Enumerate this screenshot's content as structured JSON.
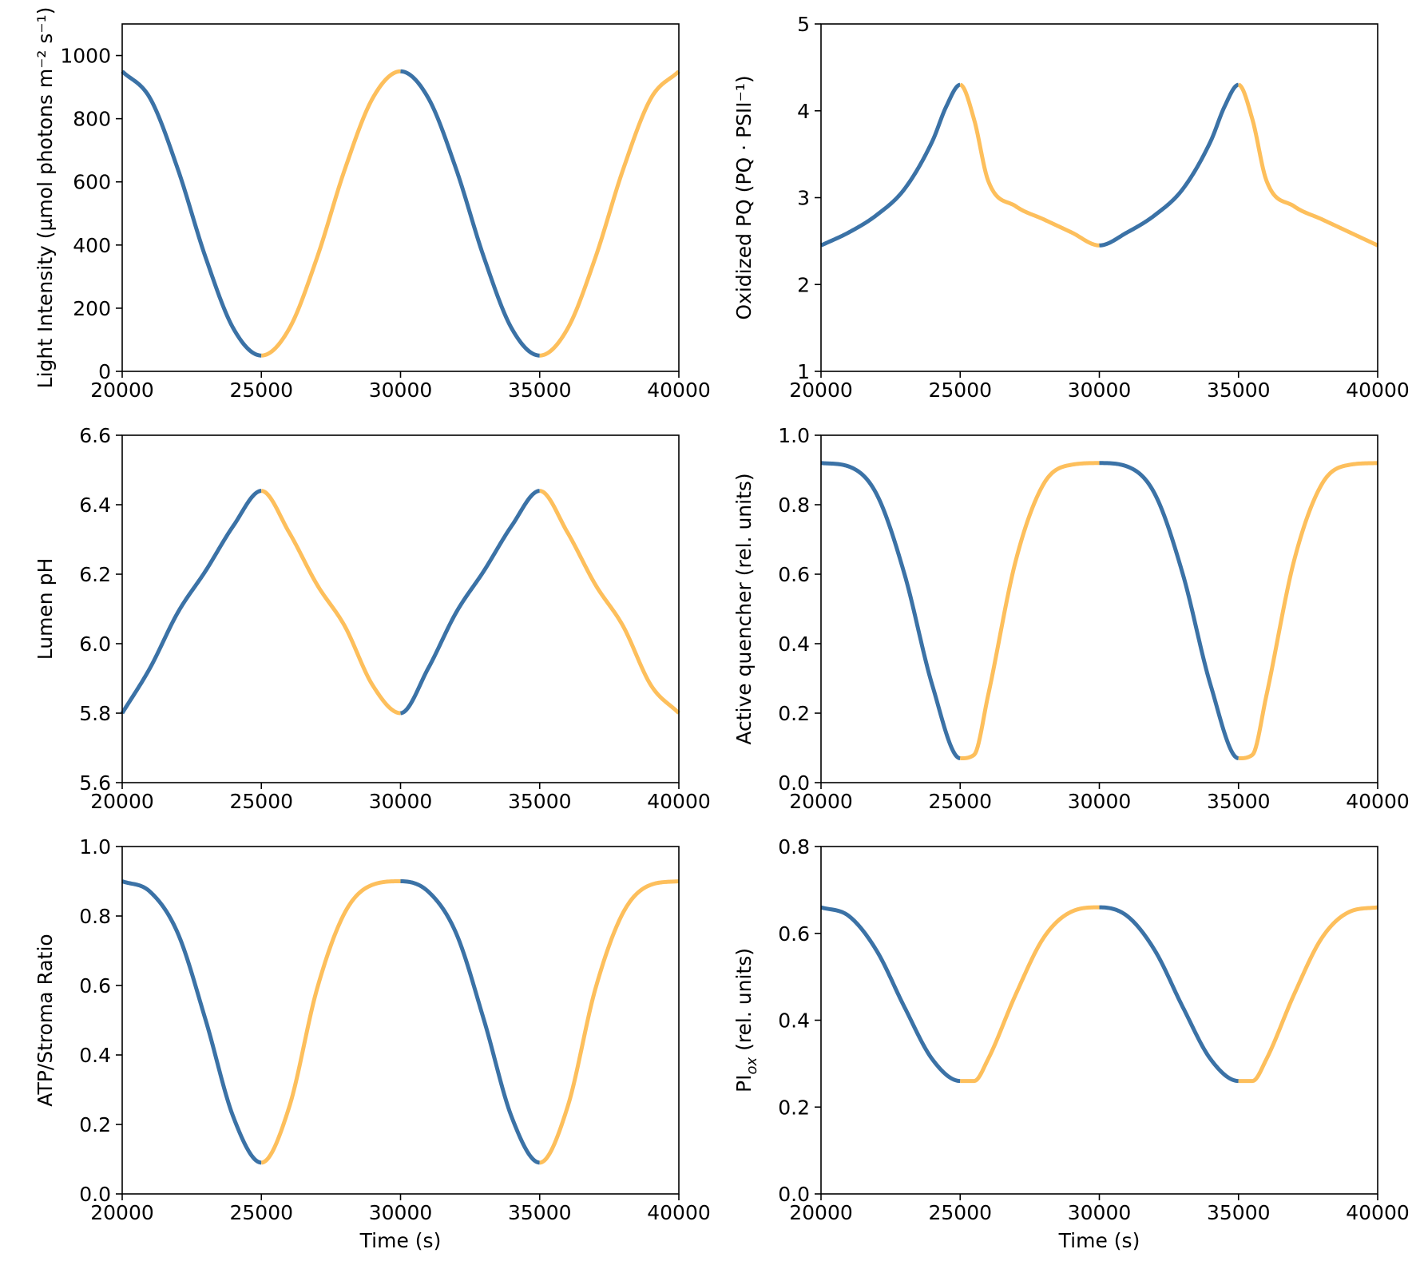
{
  "colors": {
    "dim": "#3b72a6",
    "bright": "#fdbf5c",
    "axis": "#000000"
  },
  "chart_data": [
    {
      "type": "line",
      "id": "light",
      "ylabel": "Light Intensity (µmol photons m⁻² s⁻¹)",
      "xlabel": "",
      "xlim": [
        20000,
        40000
      ],
      "ylim": [
        0,
        1100
      ],
      "xticks": [
        20000,
        25000,
        30000,
        35000,
        40000
      ],
      "yticks": [
        0,
        200,
        400,
        600,
        800,
        1000
      ],
      "x": [
        20000,
        21000,
        22000,
        23000,
        24000,
        25000,
        26000,
        27000,
        28000,
        29000,
        30000,
        31000,
        32000,
        33000,
        34000,
        35000,
        36000,
        37000,
        38000,
        39000,
        40000
      ],
      "values": [
        950,
        865,
        640,
        360,
        135,
        50,
        135,
        360,
        640,
        865,
        950,
        865,
        640,
        360,
        135,
        50,
        135,
        360,
        640,
        865,
        950
      ]
    },
    {
      "type": "line",
      "id": "pq",
      "ylabel": "Oxidized PQ (PQ · PSII⁻¹)",
      "xlabel": "",
      "xlim": [
        20000,
        40000
      ],
      "ylim": [
        1,
        5
      ],
      "xticks": [
        20000,
        25000,
        30000,
        35000,
        40000
      ],
      "yticks": [
        1,
        2,
        3,
        4,
        5
      ],
      "x": [
        20000,
        21000,
        22000,
        23000,
        24000,
        24500,
        25000,
        25500,
        26000,
        27000,
        28000,
        29000,
        30000,
        31000,
        32000,
        33000,
        34000,
        34500,
        35000,
        35500,
        36000,
        37000,
        38000,
        39000,
        40000
      ],
      "values": [
        2.45,
        2.6,
        2.8,
        3.1,
        3.65,
        4.05,
        4.3,
        3.9,
        3.2,
        2.9,
        2.75,
        2.6,
        2.45,
        2.6,
        2.8,
        3.1,
        3.65,
        4.05,
        4.3,
        3.9,
        3.2,
        2.9,
        2.75,
        2.6,
        2.45
      ]
    },
    {
      "type": "line",
      "id": "ph",
      "ylabel": "Lumen pH",
      "xlabel": "",
      "xlim": [
        20000,
        40000
      ],
      "ylim": [
        5.6,
        6.6
      ],
      "xticks": [
        20000,
        25000,
        30000,
        35000,
        40000
      ],
      "yticks": [
        5.6,
        5.8,
        6.0,
        6.2,
        6.4,
        6.6
      ],
      "x": [
        20000,
        21000,
        22000,
        23000,
        24000,
        25000,
        26000,
        27000,
        28000,
        29000,
        30000,
        31000,
        32000,
        33000,
        34000,
        35000,
        36000,
        37000,
        38000,
        39000,
        40000
      ],
      "values": [
        5.8,
        5.93,
        6.09,
        6.21,
        6.34,
        6.44,
        6.32,
        6.17,
        6.05,
        5.88,
        5.8,
        5.93,
        6.09,
        6.21,
        6.34,
        6.44,
        6.32,
        6.17,
        6.05,
        5.88,
        5.8
      ]
    },
    {
      "type": "line",
      "id": "quencher",
      "ylabel": "Active quencher (rel. units)",
      "xlabel": "",
      "xlim": [
        20000,
        40000
      ],
      "ylim": [
        0.0,
        1.0
      ],
      "xticks": [
        20000,
        25000,
        30000,
        35000,
        40000
      ],
      "yticks": [
        0.0,
        0.2,
        0.4,
        0.6,
        0.8,
        1.0
      ],
      "x": [
        20000,
        21000,
        22000,
        23000,
        24000,
        25000,
        25500,
        26000,
        27000,
        28000,
        29000,
        30000,
        31000,
        32000,
        33000,
        34000,
        35000,
        35500,
        36000,
        37000,
        38000,
        39000,
        40000
      ],
      "values": [
        0.92,
        0.91,
        0.83,
        0.6,
        0.28,
        0.07,
        0.08,
        0.25,
        0.64,
        0.86,
        0.915,
        0.92,
        0.91,
        0.83,
        0.6,
        0.28,
        0.07,
        0.08,
        0.25,
        0.64,
        0.86,
        0.915,
        0.92
      ]
    },
    {
      "type": "line",
      "id": "atp",
      "ylabel": "ATP/Stroma Ratio",
      "xlabel": "Time (s)",
      "xlim": [
        20000,
        40000
      ],
      "ylim": [
        0.0,
        1.0
      ],
      "xticks": [
        20000,
        25000,
        30000,
        35000,
        40000
      ],
      "yticks": [
        0.0,
        0.2,
        0.4,
        0.6,
        0.8,
        1.0
      ],
      "x": [
        20000,
        21000,
        22000,
        23000,
        24000,
        25000,
        26000,
        27000,
        28000,
        29000,
        30000,
        31000,
        32000,
        33000,
        34000,
        35000,
        36000,
        37000,
        38000,
        39000,
        40000
      ],
      "values": [
        0.9,
        0.87,
        0.75,
        0.5,
        0.22,
        0.09,
        0.25,
        0.59,
        0.81,
        0.89,
        0.9,
        0.87,
        0.75,
        0.5,
        0.22,
        0.09,
        0.25,
        0.59,
        0.81,
        0.89,
        0.9
      ]
    },
    {
      "type": "line",
      "id": "pi",
      "ylabel": "PI",
      "ylabel_subscript": "ox",
      "ylabel_suffix": " (rel. units)",
      "xlabel": "Time (s)",
      "xlim": [
        20000,
        40000
      ],
      "ylim": [
        0.0,
        0.8
      ],
      "xticks": [
        20000,
        25000,
        30000,
        35000,
        40000
      ],
      "yticks": [
        0.0,
        0.2,
        0.4,
        0.6,
        0.8
      ],
      "x": [
        20000,
        21000,
        22000,
        23000,
        24000,
        25000,
        25500,
        26000,
        27000,
        28000,
        29000,
        30000,
        31000,
        32000,
        33000,
        34000,
        35000,
        35500,
        36000,
        37000,
        38000,
        39000,
        40000
      ],
      "values": [
        0.66,
        0.64,
        0.56,
        0.43,
        0.31,
        0.26,
        0.26,
        0.31,
        0.46,
        0.59,
        0.65,
        0.66,
        0.64,
        0.56,
        0.43,
        0.31,
        0.26,
        0.26,
        0.31,
        0.46,
        0.59,
        0.65,
        0.66
      ]
    }
  ]
}
